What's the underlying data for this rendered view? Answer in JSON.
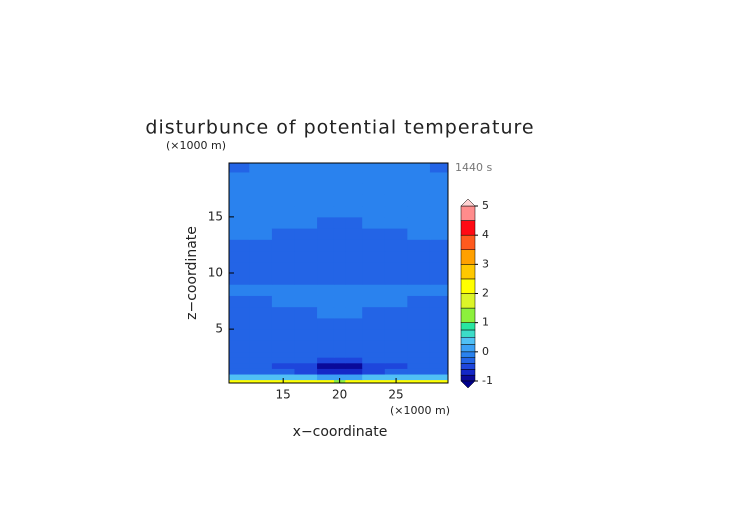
{
  "chart_data": {
    "type": "contour",
    "title": "disturbunce of potential temperature",
    "xlabel": "x−coordinate",
    "ylabel": "z−coordinate",
    "x_unit": "(×1000 m)",
    "y_unit": "(×1000 m)",
    "annotation": "1440 s",
    "xlim": [
      10.2,
      29.6
    ],
    "ylim": [
      0.2,
      19.8
    ],
    "xticks": [
      15,
      20,
      25
    ],
    "yticks": [
      5,
      10,
      15
    ],
    "x_edges": [
      10,
      12,
      14,
      16,
      18,
      19.5,
      20.5,
      22,
      24,
      26,
      28,
      30
    ],
    "y_edges": [
      0,
      0.5,
      1,
      1.5,
      2,
      2.5,
      3,
      4,
      5,
      6,
      7,
      8,
      9,
      10,
      11,
      12,
      13,
      14,
      15,
      16,
      17,
      18,
      19,
      20
    ],
    "z": [
      [
        2.1,
        2.2,
        2.2,
        2.2,
        2.1,
        1.2,
        2.1,
        2.2,
        2.2,
        2.2,
        2.1
      ],
      [
        0.3,
        0.3,
        0.3,
        0.3,
        0.2,
        0.1,
        0.2,
        0.3,
        0.3,
        0.3,
        0.3
      ],
      [
        -0.3,
        -0.35,
        -0.4,
        -0.5,
        -0.7,
        -0.8,
        -0.7,
        -0.5,
        -0.4,
        -0.35,
        -0.3
      ],
      [
        -0.3,
        -0.35,
        -0.45,
        -0.6,
        -0.85,
        -0.9,
        -0.85,
        -0.6,
        -0.45,
        -0.35,
        -0.3
      ],
      [
        -0.25,
        -0.3,
        -0.3,
        -0.35,
        -0.45,
        -0.5,
        -0.45,
        -0.35,
        -0.3,
        -0.3,
        -0.25
      ],
      [
        -0.25,
        -0.25,
        -0.25,
        -0.25,
        -0.3,
        -0.3,
        -0.3,
        -0.25,
        -0.25,
        -0.25,
        -0.25
      ],
      [
        -0.25,
        -0.25,
        -0.25,
        -0.25,
        -0.25,
        -0.25,
        -0.25,
        -0.25,
        -0.25,
        -0.25,
        -0.25
      ],
      [
        -0.25,
        -0.25,
        -0.25,
        -0.25,
        -0.25,
        -0.25,
        -0.25,
        -0.25,
        -0.25,
        -0.25,
        -0.25
      ],
      [
        -0.25,
        -0.25,
        -0.25,
        -0.25,
        -0.25,
        -0.25,
        -0.25,
        -0.25,
        -0.25,
        -0.25,
        -0.25
      ],
      [
        -0.25,
        -0.25,
        -0.25,
        -0.25,
        -0.15,
        -0.15,
        -0.15,
        -0.25,
        -0.25,
        -0.25,
        -0.25
      ],
      [
        -0.25,
        -0.25,
        -0.15,
        -0.15,
        -0.15,
        -0.15,
        -0.15,
        -0.15,
        -0.15,
        -0.25,
        -0.25
      ],
      [
        -0.15,
        -0.15,
        -0.15,
        -0.15,
        -0.15,
        -0.15,
        -0.15,
        -0.15,
        -0.15,
        -0.15,
        -0.15
      ],
      [
        -0.25,
        -0.25,
        -0.25,
        -0.25,
        -0.25,
        -0.25,
        -0.25,
        -0.25,
        -0.25,
        -0.25,
        -0.25
      ],
      [
        -0.3,
        -0.3,
        -0.3,
        -0.3,
        -0.3,
        -0.3,
        -0.3,
        -0.3,
        -0.3,
        -0.3,
        -0.3
      ],
      [
        -0.3,
        -0.3,
        -0.3,
        -0.3,
        -0.3,
        -0.3,
        -0.3,
        -0.3,
        -0.3,
        -0.3,
        -0.3
      ],
      [
        -0.3,
        -0.3,
        -0.3,
        -0.3,
        -0.3,
        -0.3,
        -0.3,
        -0.3,
        -0.3,
        -0.3,
        -0.3
      ],
      [
        -0.15,
        -0.15,
        -0.3,
        -0.3,
        -0.3,
        -0.3,
        -0.3,
        -0.3,
        -0.3,
        -0.15,
        -0.15
      ],
      [
        -0.15,
        -0.15,
        -0.15,
        -0.15,
        -0.3,
        -0.3,
        -0.3,
        -0.15,
        -0.15,
        -0.15,
        -0.15
      ],
      [
        -0.15,
        -0.15,
        -0.15,
        -0.15,
        -0.15,
        -0.15,
        -0.15,
        -0.15,
        -0.15,
        -0.15,
        -0.15
      ],
      [
        -0.15,
        -0.15,
        -0.15,
        -0.15,
        -0.15,
        -0.15,
        -0.15,
        -0.15,
        -0.15,
        -0.15,
        -0.15
      ],
      [
        -0.15,
        -0.15,
        -0.15,
        -0.15,
        -0.15,
        -0.15,
        -0.15,
        -0.15,
        -0.15,
        -0.15,
        -0.15
      ],
      [
        -0.15,
        -0.15,
        -0.15,
        -0.15,
        -0.15,
        -0.15,
        -0.15,
        -0.15,
        -0.15,
        -0.15,
        -0.15
      ],
      [
        -0.25,
        -0.15,
        -0.15,
        -0.15,
        -0.15,
        -0.15,
        -0.15,
        -0.15,
        -0.15,
        -0.15,
        -0.25
      ]
    ],
    "colorbar": {
      "levels": [
        -1,
        -0.8,
        -0.6,
        -0.4,
        -0.2,
        0,
        0.25,
        0.5,
        0.75,
        1,
        1.5,
        2,
        2.5,
        3,
        3.5,
        4,
        4.5,
        5
      ],
      "colors": [
        "#0a0a9a",
        "#1428c8",
        "#1e46dc",
        "#2364e6",
        "#2a82ee",
        "#3ca0f5",
        "#50c0f5",
        "#3cdcc8",
        "#28e6a0",
        "#8cf03c",
        "#dcf528",
        "#ffff00",
        "#ffc800",
        "#ffa000",
        "#ff5a1e",
        "#ff0a14",
        "#ff8c8c"
      ],
      "under_color": "#00008c",
      "over_color": "#ffd2d2",
      "ticks": [
        -1,
        0,
        1,
        2,
        3,
        4,
        5
      ]
    }
  }
}
